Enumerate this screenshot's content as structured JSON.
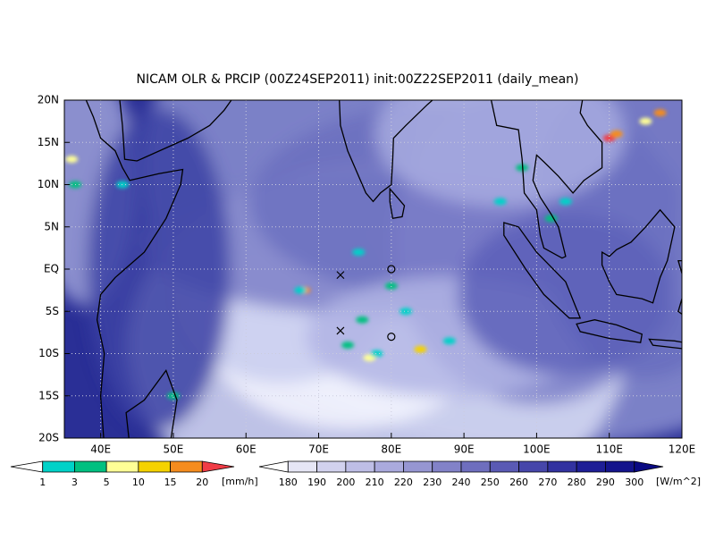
{
  "title": "NICAM OLR & PRCIP (00Z24SEP2011) init:00Z22SEP2011 (daily_mean)",
  "lat_labels": [
    "20N",
    "15N",
    "10N",
    "5N",
    "EQ",
    "5S",
    "10S",
    "15S",
    "20S"
  ],
  "lon_labels": [
    "40E",
    "50E",
    "60E",
    "70E",
    "80E",
    "90E",
    "100E",
    "110E",
    "120E"
  ],
  "precip_colorbar": {
    "labels": [
      "1",
      "3",
      "5",
      "10",
      "15",
      "20"
    ],
    "unit": "[mm/h]",
    "colors": [
      "#ffffff",
      "#00d2c8",
      "#00c080",
      "#ffff96",
      "#f5d200",
      "#f58c1e",
      "#f03c46"
    ]
  },
  "olr_colorbar": {
    "labels": [
      "180",
      "190",
      "200",
      "210",
      "220",
      "230",
      "240",
      "250",
      "260",
      "270",
      "280",
      "290",
      "300"
    ],
    "unit": "[W/m^2]",
    "colors": [
      "#ffffff",
      "#e6e6f5",
      "#d2d2ee",
      "#bebee6",
      "#aaaadd",
      "#9696d2",
      "#8282c8",
      "#6e6ebe",
      "#5a5ab4",
      "#4646aa",
      "#3232a0",
      "#1e1e96",
      "#14148c",
      "#0a0a82"
    ]
  }
}
